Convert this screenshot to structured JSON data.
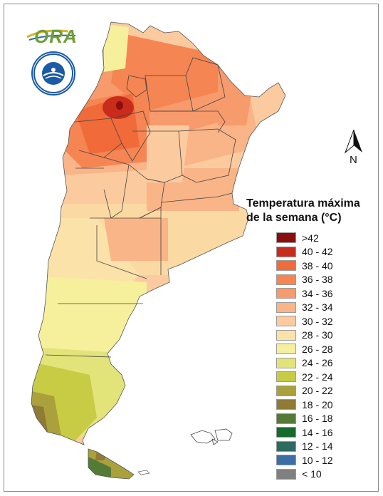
{
  "legend": {
    "title_line1": "Temperatura máxima",
    "title_line2": "de la semana (°C)",
    "classes": [
      {
        "label": ">42",
        "color": "#8b0e0e"
      },
      {
        "label": "40 - 42",
        "color": "#c92c1a"
      },
      {
        "label": "38 - 40",
        "color": "#f06a3a"
      },
      {
        "label": "36 - 38",
        "color": "#f58552"
      },
      {
        "label": "34 - 36",
        "color": "#f79a6c"
      },
      {
        "label": "32 - 34",
        "color": "#f9b487"
      },
      {
        "label": "30 - 32",
        "color": "#fbcb9f"
      },
      {
        "label": "28 - 30",
        "color": "#fbe2a9"
      },
      {
        "label": "26 - 28",
        "color": "#f6ef9c"
      },
      {
        "label": "24 - 26",
        "color": "#e2e47a"
      },
      {
        "label": "22 - 24",
        "color": "#c8cc44"
      },
      {
        "label": "20 - 22",
        "color": "#aaa13c"
      },
      {
        "label": "18 - 20",
        "color": "#8f7a36"
      },
      {
        "label": "16 - 18",
        "color": "#547a38"
      },
      {
        "label": "14 - 16",
        "color": "#166a2c"
      },
      {
        "label": "12 - 14",
        "color": "#2e6a5e"
      },
      {
        "label": "10 - 12",
        "color": "#3a6ea6"
      },
      {
        "label": "< 10",
        "color": "#808080"
      }
    ]
  },
  "north_arrow": {
    "label": "N"
  },
  "logos": {
    "ora": "ORA",
    "seal_text": "SERVICIO METEOROLÓGICO NACIONAL ARGENTINA"
  }
}
